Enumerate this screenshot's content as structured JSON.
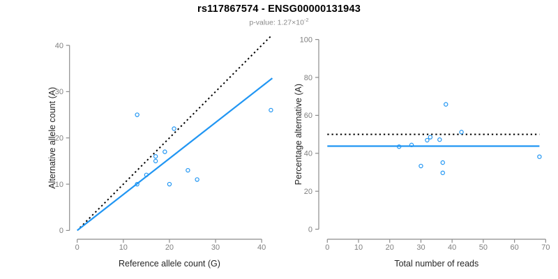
{
  "title": "rs117867574 - ENSG00000131943",
  "subtitle": {
    "prefix": "p-value: 1.27×10",
    "exponent": "-2"
  },
  "colors": {
    "points": "#2196F3",
    "fit_line": "#2196F3",
    "identity_line": "#000000",
    "axis": "#8c8c8c",
    "tick_label": "#7f7f7f",
    "axis_title": "#262626",
    "title": "#000000",
    "subtitle": "#8a8a8a"
  },
  "chart_data": [
    {
      "type": "scatter",
      "name": "allele-counts-panel",
      "xlabel": "Reference allele count (G)",
      "ylabel": "Alternative allele count (A)",
      "xlim": [
        0,
        40
      ],
      "ylim": [
        0,
        40
      ],
      "xticks": [
        0,
        10,
        20,
        30,
        40
      ],
      "yticks": [
        0,
        10,
        20,
        30,
        40
      ],
      "grid": false,
      "marker": "open-circle",
      "points": [
        [
          13,
          25
        ],
        [
          21,
          22
        ],
        [
          19,
          17
        ],
        [
          17,
          16
        ],
        [
          17,
          15
        ],
        [
          15,
          12
        ],
        [
          24,
          13
        ],
        [
          13,
          10
        ],
        [
          20,
          10
        ],
        [
          26,
          11
        ],
        [
          42,
          26
        ]
      ],
      "lines": [
        {
          "name": "identity-line",
          "style": "dotted",
          "color": "#000000",
          "x1": 0.6,
          "y1": 0.6,
          "x2": 42.3,
          "y2": 42.3
        },
        {
          "name": "fit-line",
          "style": "solid",
          "color": "#2196F3",
          "x1": 0,
          "y1": 0,
          "x2": 42.3,
          "y2": 32.9
        }
      ]
    },
    {
      "type": "scatter",
      "name": "percentage-reads-panel",
      "xlabel": "Total number of reads",
      "ylabel": "Percentage alternative (A)",
      "xlim": [
        0,
        70
      ],
      "ylim": [
        0,
        100
      ],
      "xticks": [
        0,
        10,
        20,
        30,
        40,
        50,
        60,
        70
      ],
      "yticks": [
        0,
        20,
        40,
        60,
        80,
        100
      ],
      "grid": false,
      "marker": "open-circle",
      "points": [
        [
          38,
          65.8
        ],
        [
          43,
          51.2
        ],
        [
          36,
          47.2
        ],
        [
          33,
          48.5
        ],
        [
          32,
          46.9
        ],
        [
          27,
          44.4
        ],
        [
          23,
          43.5
        ],
        [
          30,
          33.3
        ],
        [
          37,
          35.1
        ],
        [
          37,
          29.7
        ],
        [
          68,
          38.2
        ]
      ],
      "lines": [
        {
          "name": "fifty-percent-line",
          "style": "dotted",
          "color": "#000000",
          "x1": 0,
          "y1": 50,
          "x2": 68,
          "y2": 50
        },
        {
          "name": "mean-percentage-line",
          "style": "solid",
          "color": "#2196F3",
          "x1": 0,
          "y1": 43.8,
          "x2": 68,
          "y2": 43.8
        }
      ]
    }
  ]
}
